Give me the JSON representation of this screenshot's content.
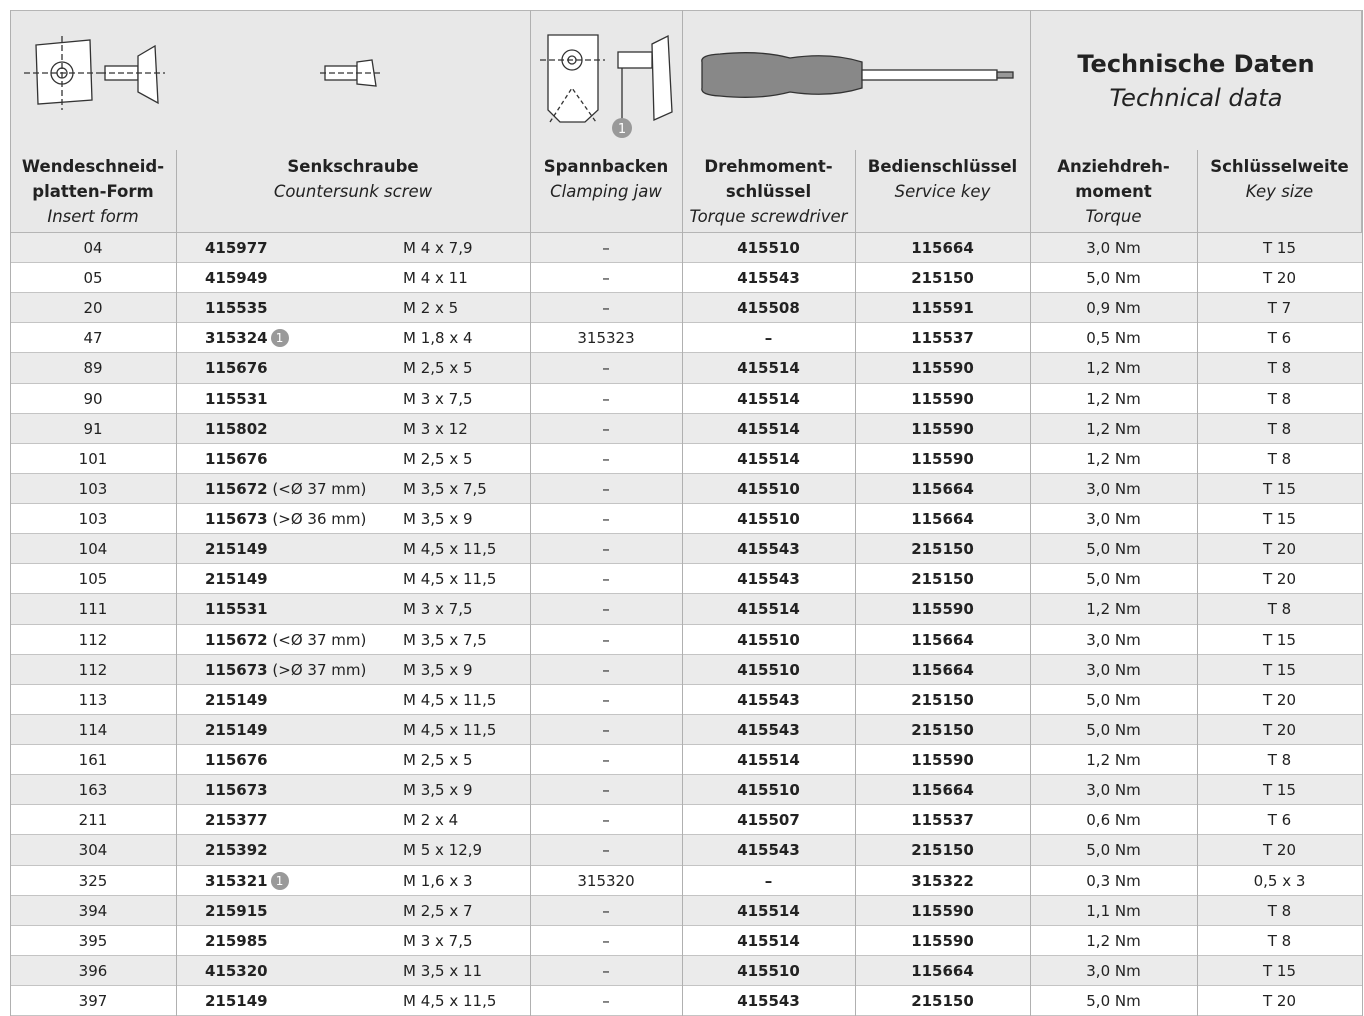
{
  "header": {
    "technical_data": {
      "title": "Technische Daten",
      "subtitle": "Technical data"
    },
    "jaw_footnote": "1",
    "columns": [
      {
        "title": [
          "Wendeschneid-",
          "platten-Form"
        ],
        "subtitle": "Insert form"
      },
      {
        "title": [
          "Senkschraube"
        ],
        "subtitle": "Countersunk screw"
      },
      {
        "title": [
          "Spannbacken"
        ],
        "subtitle": "Clamping jaw"
      },
      {
        "title": [
          "Drehmoment-",
          "schlüssel"
        ],
        "subtitle": "Torque screwdriver"
      },
      {
        "title": [
          "Bedienschlüssel"
        ],
        "subtitle": "Service key"
      },
      {
        "title": [
          "Anziehdreh-",
          "moment"
        ],
        "subtitle": "Torque"
      },
      {
        "title": [
          "Schlüsselweite"
        ],
        "subtitle": "Key size"
      }
    ]
  },
  "table": {
    "rows": [
      {
        "form": "04",
        "screw": "415977",
        "size": "M 4 x 7,9",
        "jaw": "–",
        "driver": "415510",
        "key": "115664",
        "torque": "3,0 Nm",
        "keysize": "T 15"
      },
      {
        "form": "05",
        "screw": "415949",
        "size": "M 4 x 11",
        "jaw": "–",
        "driver": "415543",
        "key": "215150",
        "torque": "5,0 Nm",
        "keysize": "T 20"
      },
      {
        "form": "20",
        "screw": "115535",
        "size": "M 2 x 5",
        "jaw": "–",
        "driver": "415508",
        "key": "115591",
        "torque": "0,9 Nm",
        "keysize": "T 7"
      },
      {
        "form": "47",
        "screw": "315324",
        "footnote": "1",
        "size": "M 1,8 x 4",
        "jaw": "315323",
        "driver": "–",
        "key": "115537",
        "torque": "0,5 Nm",
        "keysize": "T 6"
      },
      {
        "form": "89",
        "screw": "115676",
        "size": "M 2,5 x 5",
        "jaw": "–",
        "driver": "415514",
        "key": "115590",
        "torque": "1,2 Nm",
        "keysize": "T 8"
      },
      {
        "form": "90",
        "screw": "115531",
        "size": "M 3 x 7,5",
        "jaw": "–",
        "driver": "415514",
        "key": "115590",
        "torque": "1,2 Nm",
        "keysize": "T 8"
      },
      {
        "form": "91",
        "screw": "115802",
        "size": "M 3 x 12",
        "jaw": "–",
        "driver": "415514",
        "key": "115590",
        "torque": "1,2 Nm",
        "keysize": "T 8"
      },
      {
        "form": "101",
        "screw": "115676",
        "size": "M 2,5 x 5",
        "jaw": "–",
        "driver": "415514",
        "key": "115590",
        "torque": "1,2 Nm",
        "keysize": "T 8"
      },
      {
        "form": "103",
        "screw": "115672",
        "note": "(<Ø 37 mm)",
        "size": "M 3,5 x 7,5",
        "jaw": "–",
        "driver": "415510",
        "key": "115664",
        "torque": "3,0 Nm",
        "keysize": "T 15"
      },
      {
        "form": "103",
        "screw": "115673",
        "note": "(>Ø 36 mm)",
        "size": "M 3,5 x 9",
        "jaw": "–",
        "driver": "415510",
        "key": "115664",
        "torque": "3,0 Nm",
        "keysize": "T 15"
      },
      {
        "form": "104",
        "screw": "215149",
        "size": "M 4,5 x 11,5",
        "jaw": "–",
        "driver": "415543",
        "key": "215150",
        "torque": "5,0 Nm",
        "keysize": "T 20"
      },
      {
        "form": "105",
        "screw": "215149",
        "size": "M 4,5 x 11,5",
        "jaw": "–",
        "driver": "415543",
        "key": "215150",
        "torque": "5,0 Nm",
        "keysize": "T 20"
      },
      {
        "form": "111",
        "screw": "115531",
        "size": "M 3 x 7,5",
        "jaw": "–",
        "driver": "415514",
        "key": "115590",
        "torque": "1,2 Nm",
        "keysize": "T 8"
      },
      {
        "form": "112",
        "screw": "115672",
        "note": "(<Ø 37 mm)",
        "size": "M 3,5 x 7,5",
        "jaw": "–",
        "driver": "415510",
        "key": "115664",
        "torque": "3,0 Nm",
        "keysize": "T 15"
      },
      {
        "form": "112",
        "screw": "115673",
        "note": "(>Ø 37 mm)",
        "size": "M 3,5 x 9",
        "jaw": "–",
        "driver": "415510",
        "key": "115664",
        "torque": "3,0 Nm",
        "keysize": "T 15"
      },
      {
        "form": "113",
        "screw": "215149",
        "size": "M 4,5 x 11,5",
        "jaw": "–",
        "driver": "415543",
        "key": "215150",
        "torque": "5,0 Nm",
        "keysize": "T 20"
      },
      {
        "form": "114",
        "screw": "215149",
        "size": "M 4,5 x 11,5",
        "jaw": "–",
        "driver": "415543",
        "key": "215150",
        "torque": "5,0 Nm",
        "keysize": "T 20"
      },
      {
        "form": "161",
        "screw": "115676",
        "size": "M 2,5 x 5",
        "jaw": "–",
        "driver": "415514",
        "key": "115590",
        "torque": "1,2 Nm",
        "keysize": "T 8"
      },
      {
        "form": "163",
        "screw": "115673",
        "size": "M 3,5 x 9",
        "jaw": "–",
        "driver": "415510",
        "key": "115664",
        "torque": "3,0 Nm",
        "keysize": "T 15"
      },
      {
        "form": "211",
        "screw": "215377",
        "size": "M 2 x 4",
        "jaw": "–",
        "driver": "415507",
        "key": "115537",
        "torque": "0,6 Nm",
        "keysize": "T 6"
      },
      {
        "form": "304",
        "screw": "215392",
        "size": "M 5 x 12,9",
        "jaw": "–",
        "driver": "415543",
        "key": "215150",
        "torque": "5,0 Nm",
        "keysize": "T 20"
      },
      {
        "form": "325",
        "screw": "315321",
        "footnote": "1",
        "size": "M 1,6 x 3",
        "jaw": "315320",
        "driver": "–",
        "key": "315322",
        "torque": "0,3 Nm",
        "keysize": "0,5 x 3"
      },
      {
        "form": "394",
        "screw": "215915",
        "size": "M 2,5 x 7",
        "jaw": "–",
        "driver": "415514",
        "key": "115590",
        "torque": "1,1 Nm",
        "keysize": "T 8"
      },
      {
        "form": "395",
        "screw": "215985",
        "size": "M 3 x 7,5",
        "jaw": "–",
        "driver": "415514",
        "key": "115590",
        "torque": "1,2 Nm",
        "keysize": "T 8"
      },
      {
        "form": "396",
        "screw": "415320",
        "size": "M 3,5 x 11",
        "jaw": "–",
        "driver": "415510",
        "key": "115664",
        "torque": "3,0 Nm",
        "keysize": "T 15"
      },
      {
        "form": "397",
        "screw": "215149",
        "size": "M 4,5 x 11,5",
        "jaw": "–",
        "driver": "415543",
        "key": "215150",
        "torque": "5,0 Nm",
        "keysize": "T 20"
      }
    ]
  }
}
